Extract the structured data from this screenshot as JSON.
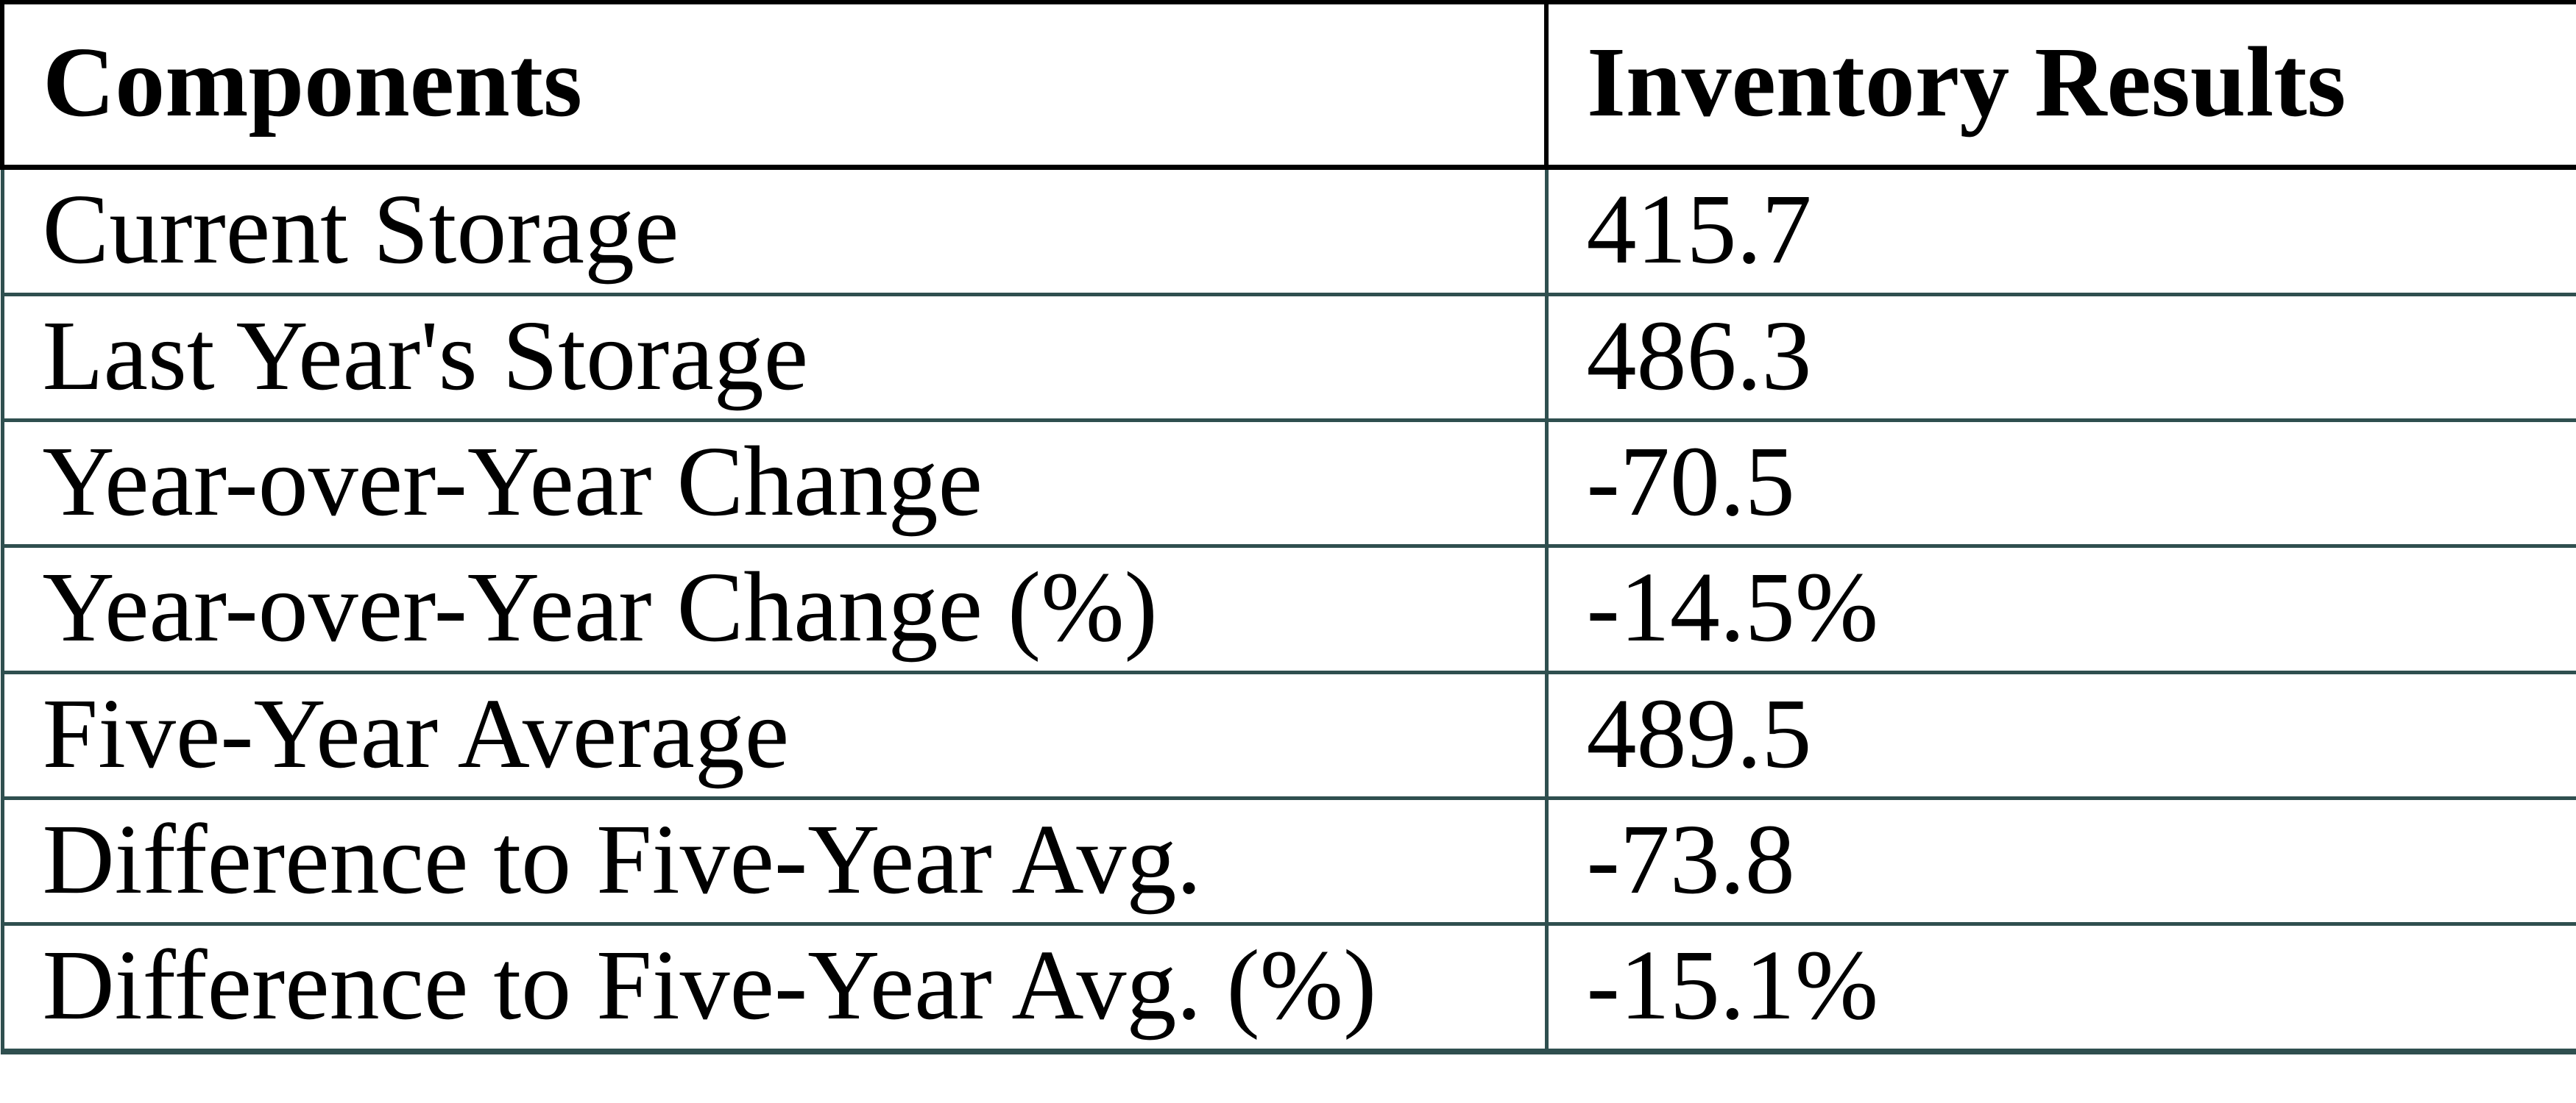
{
  "chart_data": {
    "type": "table",
    "columns": [
      "Components",
      "Inventory Results"
    ],
    "rows": [
      [
        "Current Storage",
        "415.7"
      ],
      [
        "Last Year's Storage",
        "486.3"
      ],
      [
        "Year-over-Year Change",
        "-70.5"
      ],
      [
        "Year-over-Year Change (%)",
        "-14.5%"
      ],
      [
        "Five-Year Average",
        "489.5"
      ],
      [
        "Difference to Five-Year Avg.",
        "-73.8"
      ],
      [
        "Difference to Five-Year Avg. (%)",
        "-15.1%"
      ]
    ],
    "layout_hints": {
      "header_bold": true,
      "grid": "on",
      "column_alignment": [
        "left",
        "left"
      ]
    }
  },
  "colors": {
    "header_border": "#000000",
    "body_border": "#2F4F4F",
    "text": "#000000",
    "background": "#FFFFFF"
  }
}
